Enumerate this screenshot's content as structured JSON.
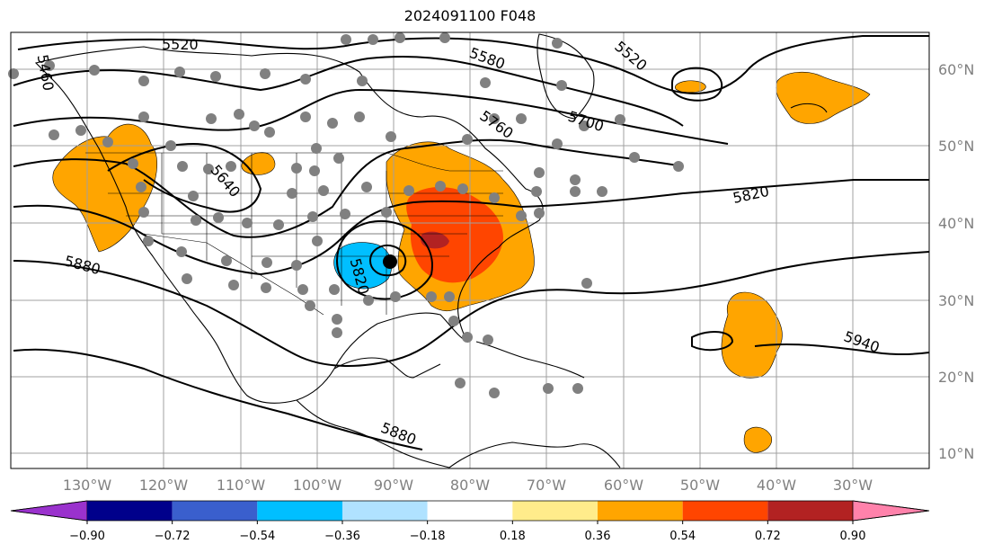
{
  "title": "2024091100 F048",
  "lon_ticks": [
    "130°W",
    "120°W",
    "110°W",
    "100°W",
    "90°W",
    "80°W",
    "70°W",
    "60°W",
    "50°W",
    "40°W",
    "30°W"
  ],
  "lat_ticks": [
    "60°N",
    "50°N",
    "40°N",
    "30°N",
    "20°N",
    "10°N"
  ],
  "colorbar": {
    "labels": [
      "−0.90",
      "−0.72",
      "−0.54",
      "−0.36",
      "−0.18",
      "0.18",
      "0.36",
      "0.54",
      "0.72",
      "0.90"
    ],
    "colors": [
      "#9a32cd",
      "#00008b",
      "#3a5fcd",
      "#00bfff",
      "#b0e2ff",
      "#ffffff",
      "#ffec8b",
      "#ffa500",
      "#ff4500",
      "#b22222",
      "#ff82ab"
    ]
  },
  "contours": [
    {
      "label": "5520"
    },
    {
      "label": "5460"
    },
    {
      "label": "5580"
    },
    {
      "label": "5640"
    },
    {
      "label": "5700"
    },
    {
      "label": "5760"
    },
    {
      "label": "5820"
    },
    {
      "label": "5880"
    },
    {
      "label": "5940"
    }
  ],
  "colors": {
    "station": "#808080",
    "contour": "#000000",
    "grid": "#a0a0a0"
  }
}
